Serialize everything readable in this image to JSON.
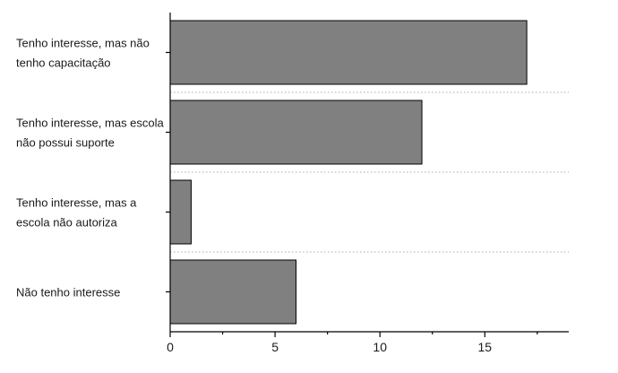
{
  "chart_data": {
    "type": "bar",
    "orientation": "horizontal",
    "categories": [
      [
        "Tenho interesse, mas não",
        "tenho capacitação"
      ],
      [
        "Tenho interesse, mas escola",
        "não possui suporte"
      ],
      [
        "Tenho interesse, mas a",
        "escola não autoriza"
      ],
      [
        "Não tenho interesse"
      ]
    ],
    "values": [
      17,
      12,
      1,
      6
    ],
    "xlim": [
      0,
      19
    ],
    "x_ticks": [
      0,
      5,
      10,
      15
    ],
    "title": "",
    "xlabel": "",
    "ylabel": "",
    "bar_color": "#808080",
    "bar_edge_color": "#000000",
    "separator_color": "#aaaaaa",
    "grid": false
  }
}
